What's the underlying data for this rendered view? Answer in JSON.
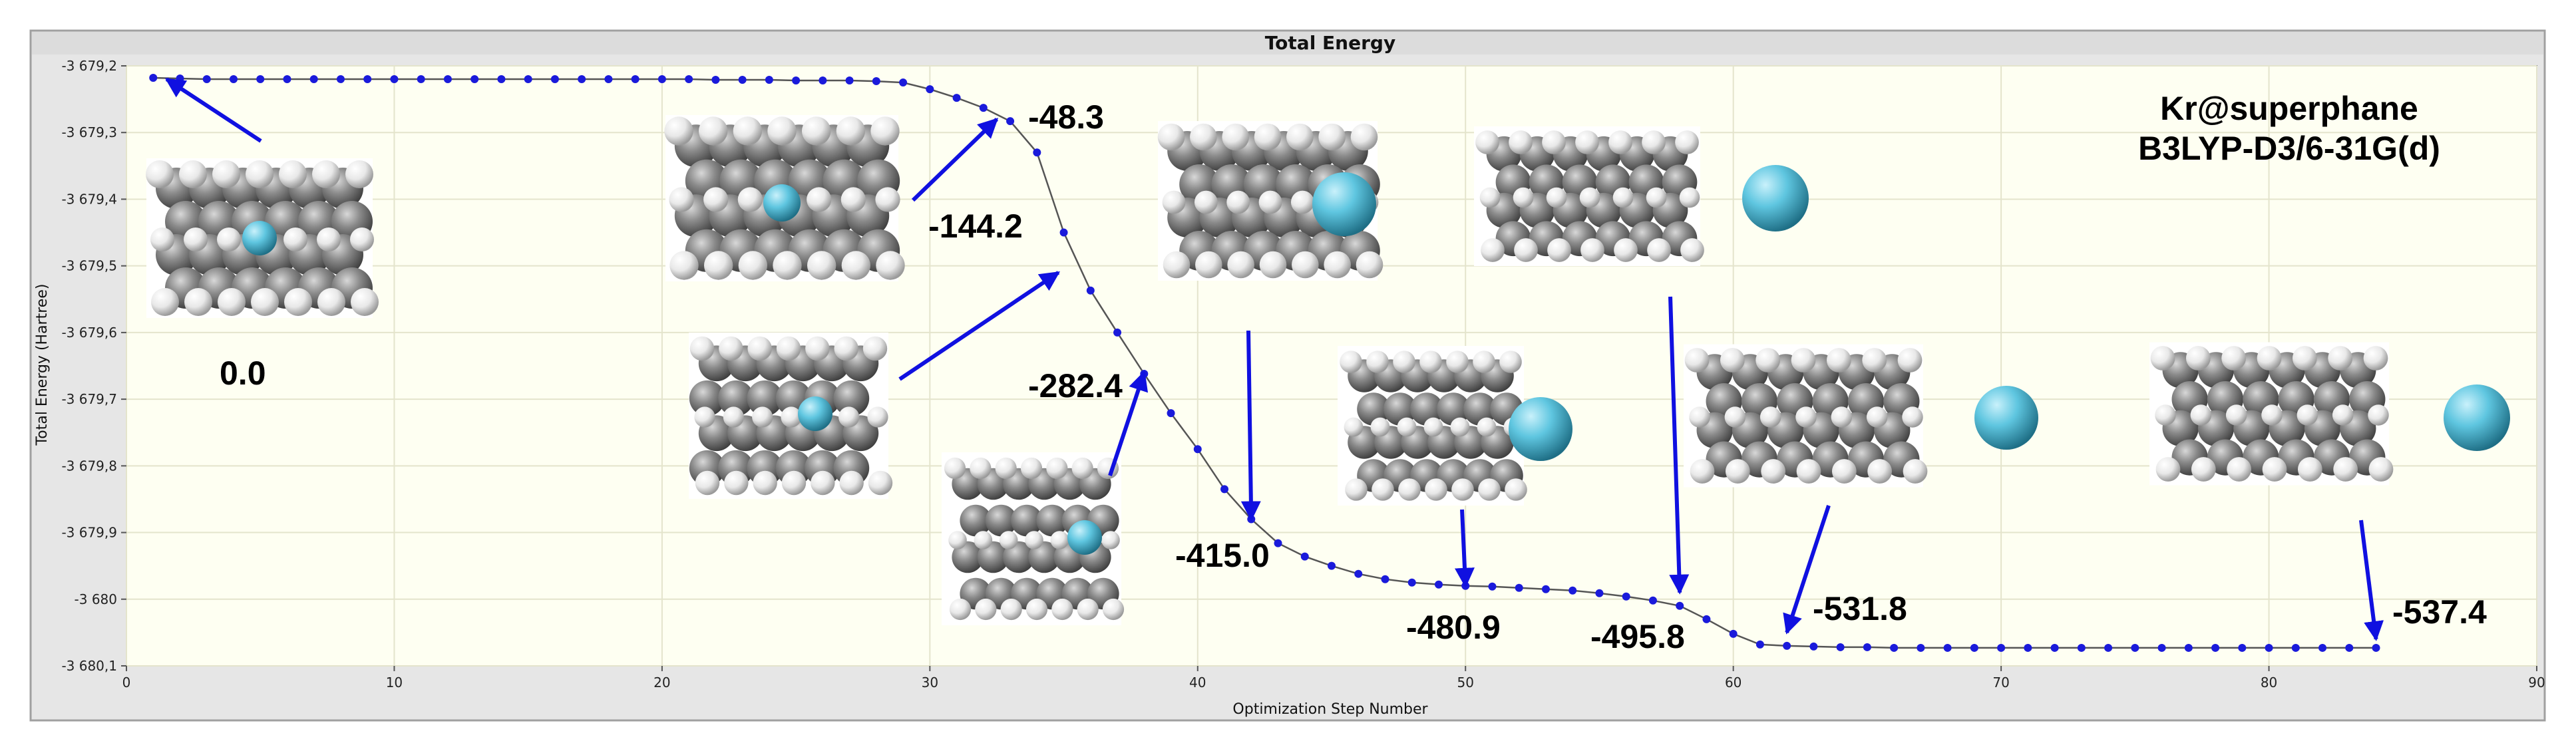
{
  "chart_data": {
    "type": "line",
    "title": "Total Energy",
    "xlabel": "Optimization Step Number",
    "ylabel": "Total Energy (Hartree)",
    "xlim": [
      0,
      90
    ],
    "ylim": [
      -3680.1,
      -3679.2
    ],
    "xticks": [
      0,
      10,
      20,
      30,
      40,
      50,
      60,
      70,
      80,
      90
    ],
    "xtick_labels": [
      "0",
      "10",
      "20",
      "30",
      "40",
      "50",
      "60",
      "70",
      "80",
      "90"
    ],
    "yticks": [
      -3679.2,
      -3679.3,
      -3679.4,
      -3679.5,
      -3679.6,
      -3679.7,
      -3679.8,
      -3679.9,
      -3680.0,
      -3680.1
    ],
    "ytick_labels": [
      "-3 679,2",
      "-3 679,3",
      "-3 679,4",
      "-3 679,5",
      "-3 679,6",
      "-3 679,7",
      "-3 679,8",
      "-3 679,9",
      "-3 680",
      "-3 680,1"
    ],
    "grid": true,
    "series": [
      {
        "color": "#1a1adb",
        "line_color": "#555555",
        "x": [
          1,
          2,
          3,
          4,
          5,
          6,
          7,
          8,
          9,
          10,
          11,
          12,
          13,
          14,
          15,
          16,
          17,
          18,
          19,
          20,
          21,
          22,
          23,
          24,
          25,
          26,
          27,
          28,
          29,
          30,
          31,
          32,
          33,
          34,
          35,
          36,
          37,
          38,
          39,
          40,
          41,
          42,
          43,
          44,
          45,
          46,
          47,
          48,
          49,
          50,
          51,
          52,
          53,
          54,
          55,
          56,
          57,
          58,
          59,
          60,
          61,
          62,
          63,
          64,
          65,
          66,
          67,
          68,
          69,
          70,
          71,
          72,
          73,
          74,
          75,
          76,
          77,
          78,
          79,
          80,
          81,
          82,
          83,
          84
        ],
        "y": [
          -3679.218,
          -3679.219,
          -3679.22,
          -3679.22,
          -3679.22,
          -3679.22,
          -3679.22,
          -3679.22,
          -3679.22,
          -3679.22,
          -3679.22,
          -3679.22,
          -3679.22,
          -3679.22,
          -3679.22,
          -3679.22,
          -3679.22,
          -3679.22,
          -3679.22,
          -3679.22,
          -3679.22,
          -3679.221,
          -3679.221,
          -3679.221,
          -3679.222,
          -3679.222,
          -3679.222,
          -3679.223,
          -3679.225,
          -3679.235,
          -3679.248,
          -3679.263,
          -3679.283,
          -3679.33,
          -3679.45,
          -3679.537,
          -3679.6,
          -3679.662,
          -3679.721,
          -3679.775,
          -3679.835,
          -3679.88,
          -3679.916,
          -3679.936,
          -3679.95,
          -3679.962,
          -3679.97,
          -3679.975,
          -3679.978,
          -3679.98,
          -3679.981,
          -3679.983,
          -3679.985,
          -3679.987,
          -3679.991,
          -3679.996,
          -3680.002,
          -3680.01,
          -3680.03,
          -3680.052,
          -3680.068,
          -3680.07,
          -3680.071,
          -3680.072,
          -3680.072,
          -3680.073,
          -3680.073,
          -3680.073,
          -3680.073,
          -3680.073,
          -3680.073,
          -3680.073,
          -3680.073,
          -3680.073,
          -3680.073,
          -3680.073,
          -3680.073,
          -3680.073,
          -3680.073,
          -3680.073,
          -3680.073,
          -3680.073,
          -3680.073,
          -3680.073
        ]
      }
    ],
    "annotations": [
      "0.0",
      "-48.3",
      "-144.2",
      "-282.4",
      "-415.0",
      "-480.9",
      "-495.8",
      "-531.8",
      "-537.4"
    ],
    "annotation_points": [
      {
        "text": "0.0",
        "x": 1.5,
        "y": -3679.22
      },
      {
        "text": "-48.3",
        "x": 32.5,
        "y": -3679.28
      },
      {
        "text": "-144.2",
        "x": 34.8,
        "y": -3679.51
      },
      {
        "text": "-282.4",
        "x": 38,
        "y": -3679.66
      },
      {
        "text": "-415.0",
        "x": 42,
        "y": -3679.88
      },
      {
        "text": "-480.9",
        "x": 50,
        "y": -3679.98
      },
      {
        "text": "-495.8",
        "x": 58,
        "y": -3679.99
      },
      {
        "text": "-531.8",
        "x": 62,
        "y": -3680.05
      },
      {
        "text": "-537.4",
        "x": 84,
        "y": -3680.06
      }
    ],
    "method_text": [
      "Kr@superphane",
      "B3LYP-D3/6-31G(d)"
    ]
  },
  "accent_colors": {
    "arrow": "#1010e0",
    "krypton": "#5fc6e0",
    "carbon": "#7a7a7a",
    "hydrogen": "#e6e6e6",
    "plot_background": "#fefff2",
    "frame_background": "#e6e6e6"
  },
  "molecule_images": [
    "structure-step-1",
    "structure-step-32",
    "structure-step-35",
    "structure-step-38",
    "structure-step-42",
    "structure-step-50",
    "structure-step-58",
    "structure-step-62",
    "structure-step-84"
  ]
}
